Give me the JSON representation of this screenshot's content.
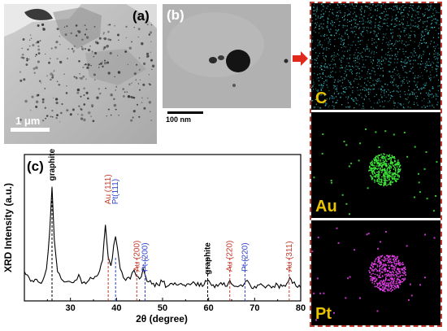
{
  "panel_a": {
    "label": "(a)",
    "scale_bar": "1 μm"
  },
  "panel_b": {
    "label": "(b)",
    "scale_bar": "100 nm"
  },
  "edx_maps": [
    {
      "element": "C",
      "color": "#3fd6dc"
    },
    {
      "element": "Au",
      "color": "#3fe63a"
    },
    {
      "element": "Pt",
      "color": "#e23fe6"
    }
  ],
  "colors": {
    "graphite": "#000000",
    "Au": "#c0392b",
    "Pt": "#2a3fd1",
    "frame": "#c0392b"
  },
  "chart_data": {
    "type": "line",
    "panel_label": "(c)",
    "xlabel": "2θ (degree)",
    "ylabel": "XRD Intensity (a.u.)",
    "xlim": [
      20,
      80
    ],
    "ylim": [
      0,
      100
    ],
    "xticks": [
      30,
      40,
      50,
      60,
      70,
      80
    ],
    "series": [
      {
        "x": [
          20,
          21,
          22,
          23,
          24,
          24.8,
          25.5,
          26.0,
          26.5,
          27.2,
          28,
          29,
          30,
          31,
          31.8,
          32.5,
          33,
          34,
          35,
          36,
          37.0,
          37.6,
          38.2,
          38.8,
          39.4,
          39.8,
          40.2,
          40.8,
          41.5,
          42,
          43,
          43.8,
          44.3,
          45,
          45.8,
          46.3,
          47,
          48,
          49,
          50,
          51,
          52,
          53,
          54,
          55,
          56,
          57,
          58,
          59,
          60,
          61,
          62,
          63,
          64,
          64.6,
          65.2,
          66,
          67,
          67.8,
          68.4,
          69,
          70,
          71,
          72,
          73,
          74,
          75,
          76,
          77,
          77.6,
          78.2,
          79,
          80
        ],
        "y": [
          20,
          16,
          13,
          13,
          14,
          22,
          48,
          78,
          42,
          20,
          15,
          13,
          13,
          14,
          18,
          12,
          13,
          14,
          15,
          18,
          28,
          52,
          30,
          24,
          38,
          44,
          36,
          22,
          16,
          14,
          15,
          21,
          17,
          15,
          22,
          17,
          13,
          12,
          11,
          13,
          10,
          12,
          11,
          12,
          10,
          11,
          12,
          10,
          11,
          14,
          11,
          10,
          11,
          10,
          14,
          11,
          10,
          11,
          12,
          14,
          11,
          10,
          11,
          10,
          11,
          10,
          11,
          10,
          12,
          16,
          12,
          10,
          9
        ]
      }
    ],
    "annotations": [
      {
        "text": "graphite",
        "x": 26.0,
        "phase": "graphite"
      },
      {
        "text": "Au (111)",
        "x": 38.2,
        "phase": "Au"
      },
      {
        "text": "Pt(111)",
        "x": 39.8,
        "phase": "Pt"
      },
      {
        "text": "Au (200)",
        "x": 44.4,
        "phase": "Au"
      },
      {
        "text": "Pt (200)",
        "x": 46.2,
        "phase": "Pt"
      },
      {
        "text": "graphite",
        "x": 59.8,
        "phase": "graphite"
      },
      {
        "text": "Au (220)",
        "x": 64.6,
        "phase": "Au"
      },
      {
        "text": "Pt (220)",
        "x": 67.9,
        "phase": "Pt"
      },
      {
        "text": "Au (311)",
        "x": 77.5,
        "phase": "Au"
      }
    ],
    "grid": false
  }
}
